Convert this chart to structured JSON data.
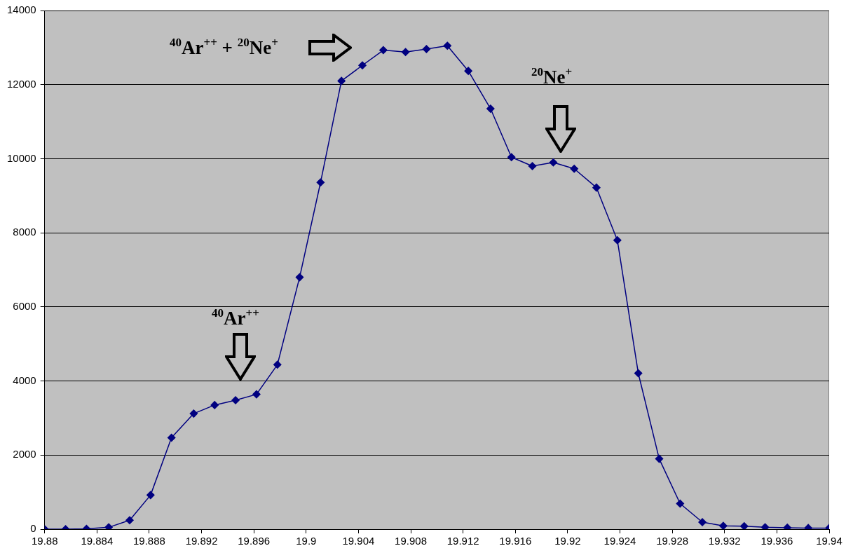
{
  "chart_data": {
    "type": "line",
    "x": [
      19.88,
      19.8816,
      19.8832,
      19.8849,
      19.8865,
      19.8881,
      19.8897,
      19.8914,
      19.893,
      19.8946,
      19.8962,
      19.8978,
      19.8995,
      19.9011,
      19.9027,
      19.9043,
      19.9059,
      19.9076,
      19.9092,
      19.9108,
      19.9124,
      19.9141,
      19.9157,
      19.9173,
      19.9189,
      19.9205,
      19.9222,
      19.9238,
      19.9254,
      19.927,
      19.9286,
      19.9303,
      19.9319,
      19.9335,
      19.9351,
      19.9368,
      19.9384,
      19.94
    ],
    "series": [
      {
        "color": "#000080",
        "values": [
          0,
          0,
          10,
          50,
          240,
          920,
          2470,
          3120,
          3350,
          3480,
          3640,
          4440,
          6800,
          9360,
          12100,
          12520,
          12930,
          12880,
          12960,
          13050,
          12370,
          11350,
          10040,
          9800,
          9900,
          9730,
          9220,
          7800,
          4210,
          1900,
          690,
          190,
          90,
          80,
          50,
          40,
          30,
          30
        ]
      }
    ],
    "xlim": [
      19.88,
      19.94
    ],
    "xticks": [
      19.88,
      19.884,
      19.888,
      19.892,
      19.896,
      19.9,
      19.904,
      19.908,
      19.912,
      19.916,
      19.92,
      19.924,
      19.928,
      19.932,
      19.936,
      19.94
    ],
    "ylim": [
      0,
      14000
    ],
    "yticks": [
      0,
      2000,
      4000,
      6000,
      8000,
      10000,
      12000,
      14000
    ],
    "grid": "y",
    "legend": false,
    "marker": "diamond",
    "line_style": "solid",
    "annotations": [
      "$^{40}$Ar$^{++}$ + $^{20}$Ne$^{+}$",
      "$^{20}$Ne$^{+}$",
      "$^{40}$Ar$^{++}$"
    ]
  }
}
